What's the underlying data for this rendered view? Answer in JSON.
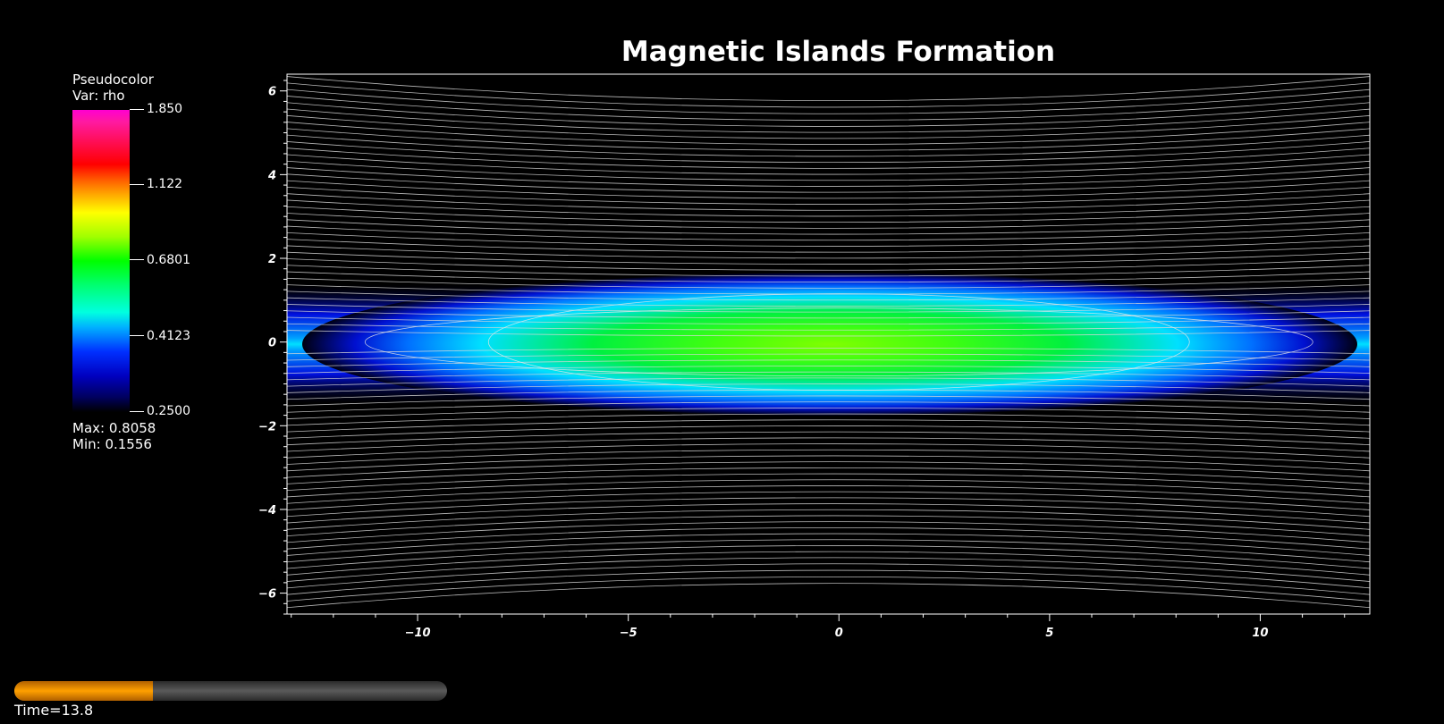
{
  "chart_data": {
    "type": "heatmap",
    "title": "Magnetic Islands Formation",
    "xlabel": "",
    "ylabel": "",
    "xlim": [
      -13.1,
      12.6
    ],
    "ylim": [
      -6.5,
      6.4
    ],
    "x_ticks": [
      -10,
      -5,
      0,
      5,
      10
    ],
    "y_ticks": [
      -6,
      -4,
      -2,
      0,
      2,
      4,
      6
    ],
    "x_tick_labels": [
      "−10",
      "−5",
      "0",
      "5",
      "10"
    ],
    "y_tick_labels": [
      "−6",
      "−4",
      "−2",
      "0",
      "2",
      "4",
      "6"
    ],
    "variable": "rho",
    "contour_lines": true,
    "legend": {
      "title": "Pseudocolor",
      "var_label": "Var: rho",
      "ticks": [
        "1.850",
        "1.122",
        "0.6801",
        "0.4123",
        "0.2500"
      ],
      "tick_values": [
        1.85,
        1.122,
        0.6801,
        0.4123,
        0.25
      ],
      "scale": "log",
      "max_label": "Max:  0.8058",
      "min_label": "Min:  0.1556",
      "placement": "left"
    }
  },
  "time": {
    "label": "Time=13.8",
    "progress": 0.32
  },
  "colors": {
    "background": "#000000",
    "contour": "#ffffff",
    "time_fill": "#ffa000"
  }
}
